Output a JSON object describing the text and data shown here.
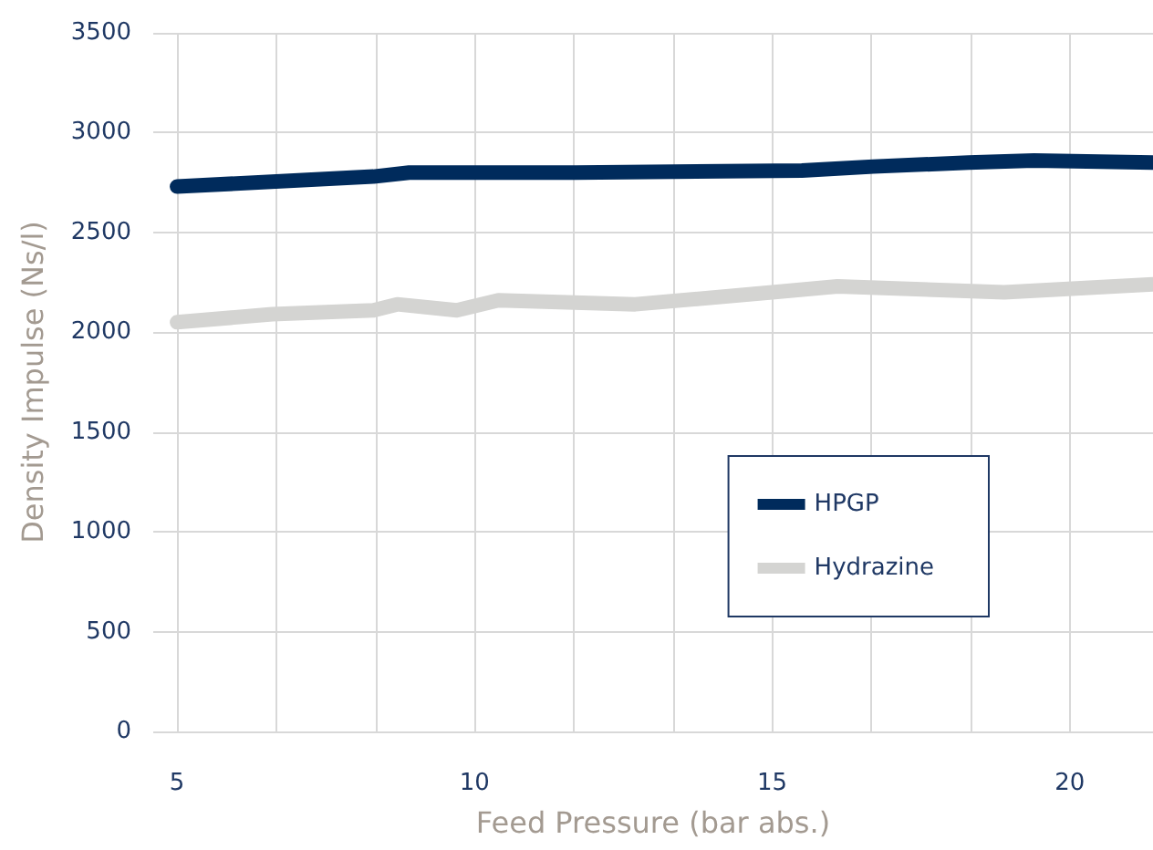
{
  "chart_data": {
    "type": "line",
    "xlabel": "Feed Pressure (bar abs.)",
    "ylabel": "Density Impulse (Ns/l)",
    "xlim": [
      4.6,
      21.4
    ],
    "xticks": [
      5,
      {
        "value": 6.667,
        "label": null
      },
      {
        "value": 8.333,
        "label": null
      },
      10,
      {
        "value": 11.667,
        "label": null
      },
      {
        "value": 13.333,
        "label": null
      },
      15,
      {
        "value": 16.667,
        "label": null
      },
      {
        "value": 18.333,
        "label": null
      },
      20
    ],
    "ylim": [
      0,
      3500
    ],
    "yticks": [
      0,
      500,
      1000,
      1500,
      2000,
      2500,
      3000,
      3500
    ],
    "grid": true,
    "legend": "right",
    "line_style": "solid",
    "series": [
      {
        "name": "HPGP",
        "color": "#002b5c",
        "x": [
          5,
          8.3,
          8.9,
          11.7,
          15.5,
          16.7,
          18.3,
          19.4,
          21.4
        ],
        "values": [
          2730,
          2780,
          2800,
          2800,
          2810,
          2830,
          2850,
          2860,
          2850
        ]
      },
      {
        "name": "Hydrazine",
        "color": "#d4d4d2",
        "x": [
          5,
          6.6,
          8.3,
          8.7,
          9.7,
          10.4,
          12.7,
          15,
          16.1,
          18.9,
          21.4
        ],
        "values": [
          2050,
          2090,
          2110,
          2140,
          2110,
          2160,
          2140,
          2200,
          2230,
          2200,
          2240
        ]
      }
    ]
  }
}
